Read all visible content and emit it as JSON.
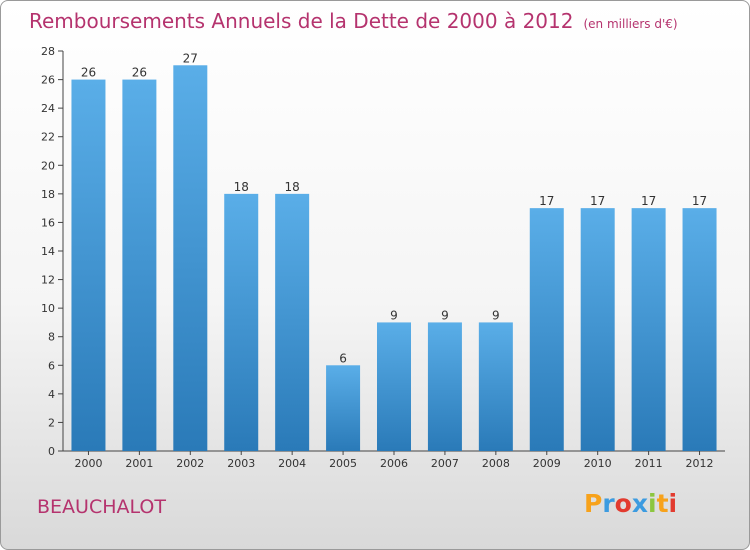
{
  "title": "Remboursements Annuels de la Dette de 2000 à 2012",
  "unit": "(en milliers d'€)",
  "location": "BEAUCHALOT",
  "logo": {
    "letters": [
      "P",
      "r",
      "o",
      "x",
      "i",
      "t",
      "i"
    ],
    "colors": [
      "#f7a21b",
      "#3c9be0",
      "#e23b2f",
      "#3c9be0",
      "#8cc63f",
      "#f7a21b",
      "#e23b2f"
    ]
  },
  "colors": {
    "accent": "#b5336e",
    "bar_top": "#5aaee8",
    "bar_bottom": "#2a7ab8"
  },
  "chart_data": {
    "type": "bar",
    "categories": [
      "2000",
      "2001",
      "2002",
      "2003",
      "2004",
      "2005",
      "2006",
      "2007",
      "2008",
      "2009",
      "2010",
      "2011",
      "2012"
    ],
    "values": [
      26,
      26,
      27,
      18,
      18,
      6,
      9,
      9,
      9,
      17,
      17,
      17,
      17
    ],
    "ylim": [
      0,
      28
    ],
    "yticks": [
      0,
      2,
      4,
      6,
      8,
      10,
      12,
      14,
      16,
      18,
      20,
      22,
      24,
      26,
      28
    ],
    "grid": false,
    "legend": "none"
  }
}
